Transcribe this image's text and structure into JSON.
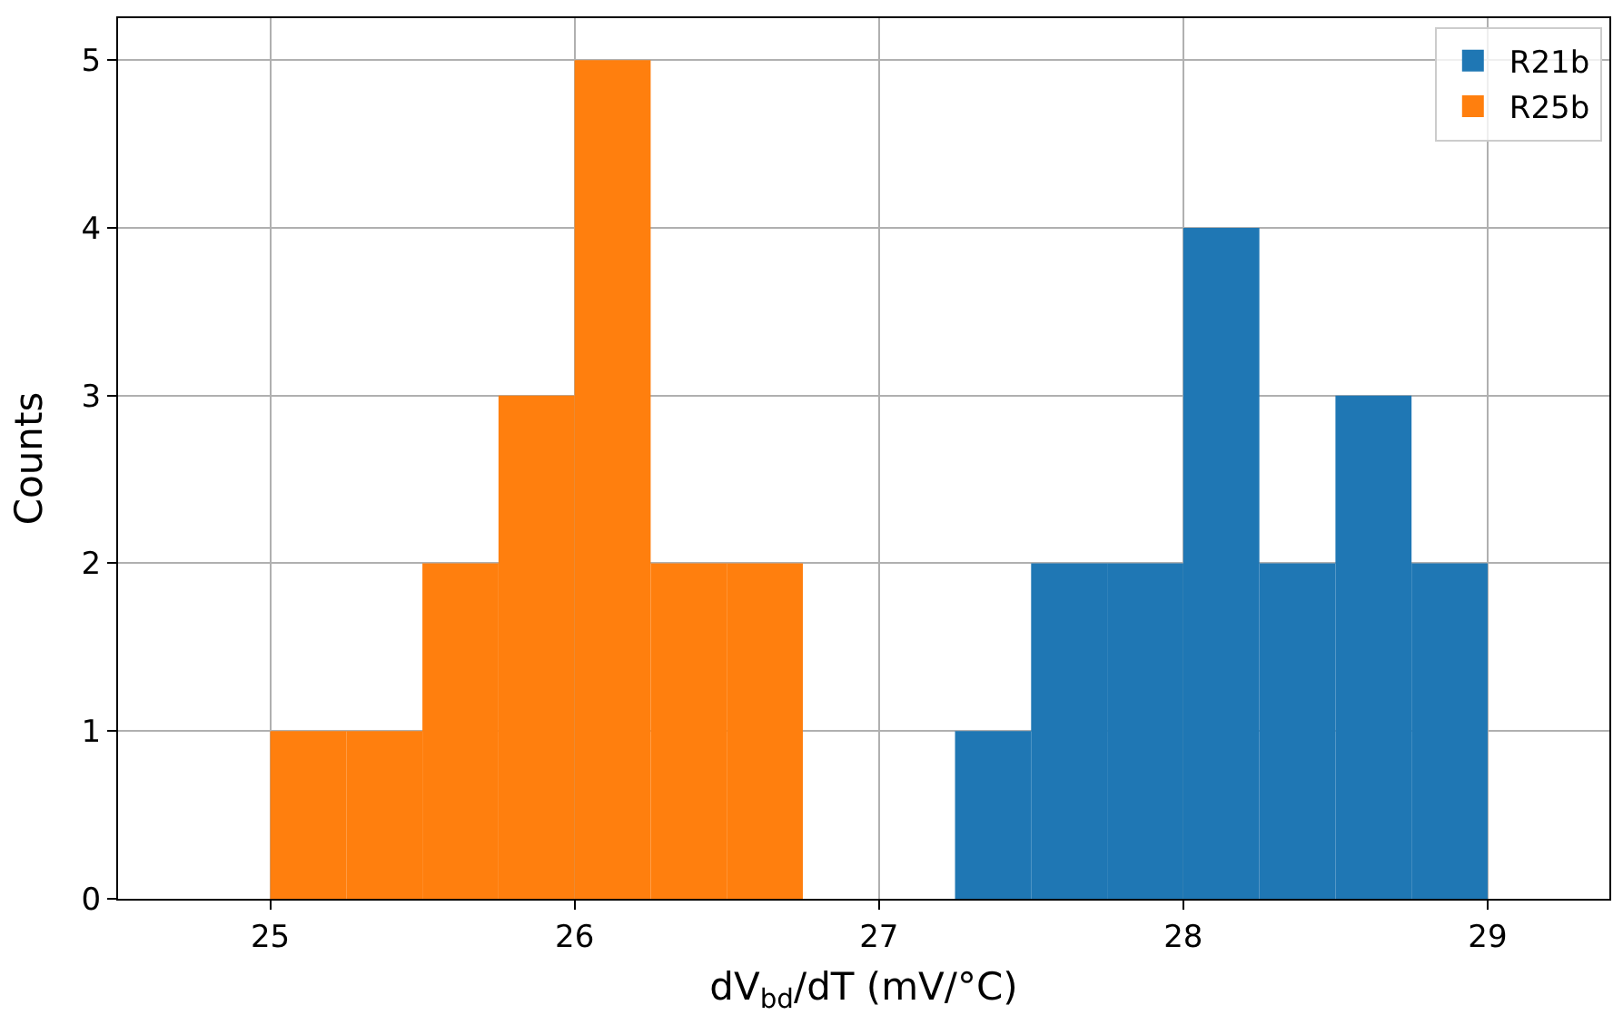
{
  "chart_data": {
    "type": "histogram",
    "xlabel": "dV$_{bd}$/dT (mV/°C)",
    "ylabel": "Counts",
    "bins": [
      25.0,
      25.25,
      25.5,
      25.75,
      26.0,
      26.25,
      26.5,
      26.75,
      27.0,
      27.25,
      27.5,
      27.75,
      28.0,
      28.25,
      28.5,
      28.75,
      29.0
    ],
    "series": [
      {
        "name": "R21b",
        "color": "#1f77b4",
        "values": [
          0,
          0,
          0,
          0,
          0,
          0,
          0,
          0,
          0,
          1,
          2,
          2,
          4,
          2,
          3,
          2
        ]
      },
      {
        "name": "R25b",
        "color": "#ff7f0e",
        "values": [
          1,
          1,
          2,
          3,
          5,
          2,
          2,
          0,
          0,
          0,
          0,
          0,
          0,
          0,
          0,
          0
        ]
      }
    ],
    "xlim": [
      24.5,
      29.4
    ],
    "xticks": [
      25,
      26,
      27,
      28,
      29
    ],
    "ylim": [
      0,
      5.25
    ],
    "yticks": [
      0,
      1,
      2,
      3,
      4,
      5
    ],
    "grid": true,
    "legend": "top right"
  }
}
